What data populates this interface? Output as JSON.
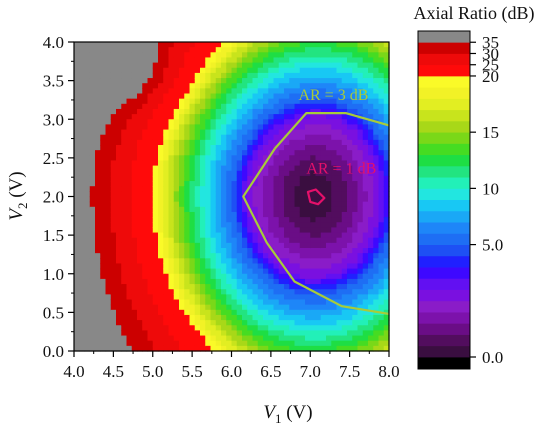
{
  "chart_data": {
    "type": "heatmap",
    "title": "",
    "xlabel_main": "V",
    "xlabel_sub": "1",
    "xlabel_unit": " (V)",
    "ylabel_main": "V",
    "ylabel_sub": "2",
    "ylabel_unit": " (V)",
    "xlim": [
      4.0,
      8.0
    ],
    "ylim": [
      0.0,
      4.0
    ],
    "x_ticks": [
      "4.0",
      "4.5",
      "5.0",
      "5.5",
      "6.0",
      "6.5",
      "7.0",
      "7.5",
      "8.0"
    ],
    "y_ticks": [
      "0.0",
      "0.5",
      "1.0",
      "1.5",
      "2.0",
      "2.5",
      "3.0",
      "3.5",
      "4.0"
    ],
    "x_ticks_v": [
      4.0,
      4.5,
      5.0,
      5.5,
      6.0,
      6.5,
      7.0,
      7.5,
      8.0
    ],
    "y_ticks_v": [
      0.0,
      0.5,
      1.0,
      1.5,
      2.0,
      2.5,
      3.0,
      3.5,
      4.0
    ],
    "colorbar": {
      "title": "Axial Ratio (dB)",
      "tick_labels": [
        "0.0",
        "5.0",
        "10",
        "15",
        "20",
        "25",
        "30",
        "35"
      ],
      "tick_values": [
        0,
        5,
        10,
        15,
        20,
        25,
        30,
        35
      ],
      "levels": [
        -2,
        0,
        0.5,
        1,
        1.5,
        2,
        2.5,
        3,
        3.5,
        4,
        4.5,
        5,
        6,
        7,
        8,
        9,
        10,
        11,
        12,
        13,
        14,
        15,
        16,
        17,
        18,
        19,
        20,
        25,
        30,
        35,
        40
      ],
      "colors": [
        "#000000",
        "#3a0e40",
        "#520d5e",
        "#6a0d86",
        "#7c12ab",
        "#8a1cc8",
        "#7a10e0",
        "#6210f2",
        "#3e08ff",
        "#2020ff",
        "#1e50f4",
        "#1e6ef4",
        "#1e86f8",
        "#1aa8f6",
        "#18c8f4",
        "#22e6e0",
        "#22f0b8",
        "#22e480",
        "#1ede44",
        "#46dc22",
        "#7ad818",
        "#a8d818",
        "#c8e41c",
        "#e2ee22",
        "#f2f226",
        "#fafa28",
        "#ff0a0a",
        "#ee0a0a",
        "#cc0000",
        "#888888"
      ]
    },
    "series": [
      {
        "name": "AR = 3 dB",
        "color": "#a7cc3a",
        "x": [
          6.55,
          6.95,
          7.45,
          8.0
        ],
        "y": [
          2.62,
          3.08,
          3.08,
          2.92
        ]
      },
      {
        "name": "AR = 3 dB",
        "color": "#a7cc3a",
        "x": [
          6.55,
          6.15,
          6.45,
          6.8,
          7.4,
          8.0
        ],
        "y": [
          2.62,
          2.0,
          1.4,
          0.9,
          0.58,
          0.48
        ]
      },
      {
        "name": "AR = 1 dB",
        "color": "#e4106a",
        "x": [
          6.97,
          7.07,
          7.18,
          7.1,
          7.0
        ],
        "y": [
          2.06,
          2.09,
          1.98,
          1.9,
          1.93
        ]
      }
    ],
    "annotations": [
      {
        "text": "AR = 3 dB",
        "x": 6.85,
        "y": 3.25,
        "color": "#a7cc3a"
      },
      {
        "text": "AR = 1 dB",
        "x": 6.95,
        "y": 2.3,
        "color": "#e4106a"
      }
    ]
  }
}
